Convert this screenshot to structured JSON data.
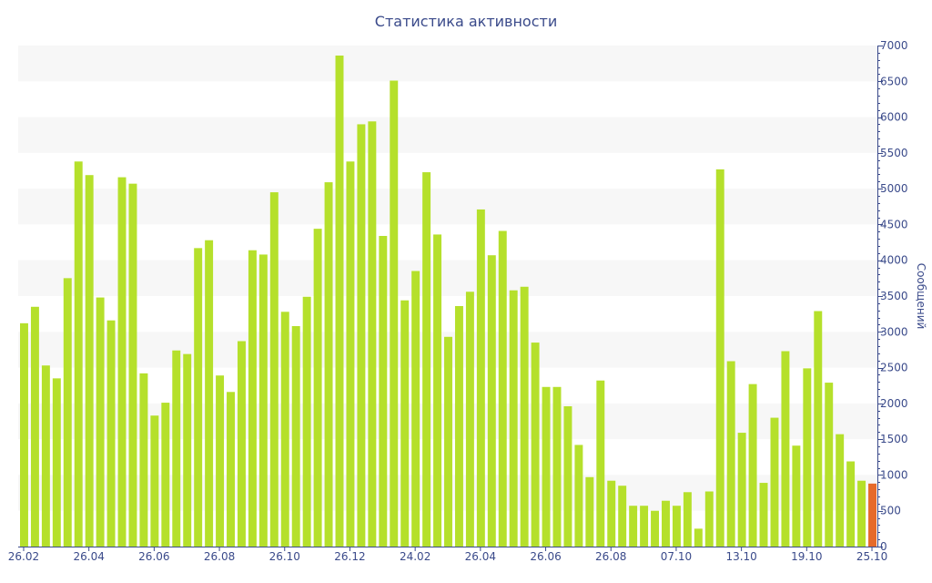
{
  "chart_data": {
    "type": "bar",
    "title": "Статистика активности",
    "ylabel": "Сообщений",
    "ylim": [
      0,
      7000
    ],
    "y_ticks": [
      0,
      500,
      1000,
      1500,
      2000,
      2500,
      3000,
      3500,
      4000,
      4500,
      5000,
      5500,
      6000,
      6500,
      7000
    ],
    "x_tick_labels": [
      {
        "index": 0,
        "label": "26.02"
      },
      {
        "index": 6,
        "label": "26.04"
      },
      {
        "index": 12,
        "label": "26.06"
      },
      {
        "index": 18,
        "label": "26.08"
      },
      {
        "index": 24,
        "label": "26.10"
      },
      {
        "index": 30,
        "label": "26.12"
      },
      {
        "index": 36,
        "label": "24.02"
      },
      {
        "index": 42,
        "label": "26.04"
      },
      {
        "index": 48,
        "label": "26.06"
      },
      {
        "index": 54,
        "label": "26.08"
      },
      {
        "index": 60,
        "label": "07.10"
      },
      {
        "index": 66,
        "label": "13.10"
      },
      {
        "index": 72,
        "label": "19.10"
      },
      {
        "index": 78,
        "label": "25.10"
      }
    ],
    "values": [
      3120,
      3350,
      2530,
      2350,
      3750,
      5380,
      5190,
      3480,
      3160,
      5160,
      5070,
      2420,
      1830,
      2010,
      2740,
      2690,
      4170,
      4280,
      2390,
      2160,
      2870,
      4140,
      4080,
      4950,
      3280,
      3080,
      3490,
      4440,
      5090,
      6860,
      5380,
      5900,
      5940,
      4340,
      6510,
      3440,
      3850,
      5230,
      4360,
      2930,
      3360,
      3560,
      4710,
      4070,
      4410,
      3580,
      3630,
      2850,
      2230,
      2230,
      1960,
      1420,
      970,
      2320,
      920,
      850,
      570,
      570,
      500,
      640,
      570,
      760,
      250,
      770,
      5270,
      2590,
      1590,
      2270,
      890,
      1800,
      2730,
      1410,
      2490,
      3290,
      2290,
      1570,
      1190,
      920,
      880
    ],
    "highlight_index": 78,
    "colors": {
      "bar": "#b5e02b",
      "highlight_bar": "#e66a2a",
      "band": "#f7f7f7",
      "axis": "#3a4a8a",
      "text": "#3a4a8a"
    },
    "grid": true,
    "legend": "none"
  }
}
